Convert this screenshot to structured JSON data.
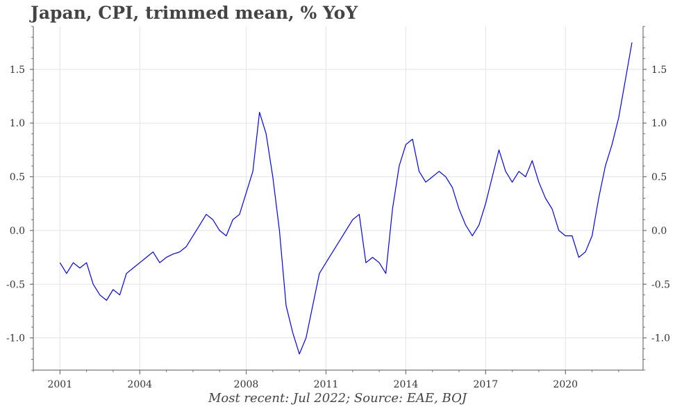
{
  "chart_data": {
    "type": "line",
    "title": "Japan, CPI, trimmed mean, % YoY",
    "footnote": "Most recent: Jul 2022; Source: EAE, BOJ",
    "xlabel": "",
    "ylabel": "",
    "x_range": [
      "2000-01",
      "2022-12"
    ],
    "ylim": [
      -1.3,
      1.9
    ],
    "y_ticks": [
      "1.5",
      "1.0",
      "0.5",
      "0.0",
      "-0.5",
      "-1.0"
    ],
    "x_ticks": [
      "2001",
      "2004",
      "2008",
      "2011",
      "2014",
      "2017",
      "2020"
    ],
    "grid": true,
    "legend": "none",
    "line_color": "#0000ee",
    "series": [
      {
        "x": [
          "2001-01",
          "2001-04",
          "2001-07",
          "2001-10",
          "2002-01",
          "2002-04",
          "2002-07",
          "2002-10",
          "2003-01",
          "2003-04",
          "2003-07",
          "2003-10",
          "2004-01",
          "2004-04",
          "2004-07",
          "2004-10",
          "2005-01",
          "2005-04",
          "2005-07",
          "2005-10",
          "2006-01",
          "2006-04",
          "2006-07",
          "2006-10",
          "2007-01",
          "2007-04",
          "2007-07",
          "2007-10",
          "2008-01",
          "2008-04",
          "2008-07",
          "2008-10",
          "2009-01",
          "2009-04",
          "2009-07",
          "2009-10",
          "2010-01",
          "2010-04",
          "2010-07",
          "2010-10",
          "2011-01",
          "2011-04",
          "2011-07",
          "2011-10",
          "2012-01",
          "2012-04",
          "2012-07",
          "2012-10",
          "2013-01",
          "2013-04",
          "2013-07",
          "2013-10",
          "2014-01",
          "2014-04",
          "2014-07",
          "2014-10",
          "2015-01",
          "2015-04",
          "2015-07",
          "2015-10",
          "2016-01",
          "2016-04",
          "2016-07",
          "2016-10",
          "2017-01",
          "2017-04",
          "2017-07",
          "2017-10",
          "2018-01",
          "2018-04",
          "2018-07",
          "2018-10",
          "2019-01",
          "2019-04",
          "2019-07",
          "2019-10",
          "2020-01",
          "2020-04",
          "2020-07",
          "2020-10",
          "2021-01",
          "2021-04",
          "2021-07",
          "2021-10",
          "2022-01",
          "2022-04",
          "2022-07"
        ],
        "values": [
          -0.3,
          -0.4,
          -0.3,
          -0.35,
          -0.3,
          -0.5,
          -0.6,
          -0.65,
          -0.55,
          -0.6,
          -0.4,
          -0.35,
          -0.3,
          -0.25,
          -0.2,
          -0.3,
          -0.25,
          -0.22,
          -0.2,
          -0.15,
          -0.05,
          0.05,
          0.15,
          0.1,
          0.0,
          -0.05,
          0.1,
          0.15,
          0.35,
          0.55,
          1.1,
          0.9,
          0.5,
          0.0,
          -0.7,
          -0.95,
          -1.15,
          -1.0,
          -0.7,
          -0.4,
          -0.3,
          -0.2,
          -0.1,
          0.0,
          0.1,
          0.15,
          -0.3,
          -0.25,
          -0.3,
          -0.4,
          0.2,
          0.6,
          0.8,
          0.85,
          0.55,
          0.45,
          0.5,
          0.55,
          0.5,
          0.4,
          0.2,
          0.05,
          -0.05,
          0.05,
          0.25,
          0.5,
          0.75,
          0.55,
          0.45,
          0.55,
          0.5,
          0.65,
          0.45,
          0.3,
          0.2,
          0.0,
          -0.05,
          -0.05,
          -0.25,
          -0.2,
          -0.05,
          0.3,
          0.6,
          0.8,
          1.05,
          1.4,
          1.75
        ]
      }
    ]
  }
}
